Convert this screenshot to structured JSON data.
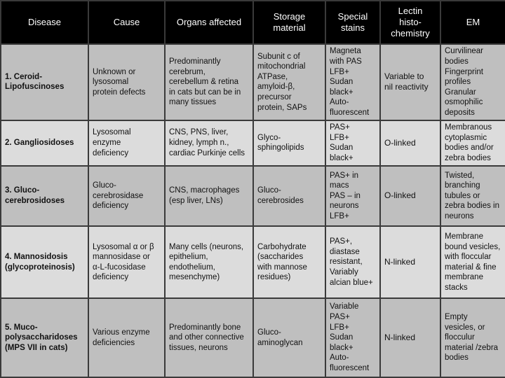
{
  "headers": [
    "Disease",
    "Cause",
    "Organs affected",
    "Storage\nmaterial",
    "Special\nstains",
    "Lectin\nhisto-\nchemistry",
    "EM"
  ],
  "rows": [
    {
      "disease": "1. Ceroid-\nLipofuscinoses",
      "cause": "Unknown or\nlysosomal\nprotein defects",
      "organs": "Predominantly\ncerebrum,\ncerebellum & retina\nin cats but can be in\nmany tissues",
      "storage": "Subunit c of\nmitochondrial\nATPase,\namyloid-β,\nprecursor\nprotein,  SAPs",
      "stains": "Magneta\nwith PAS\nLFB+\nSudan\nblack+\nAuto-\nfluorescent",
      "lectin": "Variable to\nnil reactivity",
      "em": "Curvilinear\nbodies\nFingerprint\nprofiles\nGranular\nosmophilic\ndeposits"
    },
    {
      "disease": "2. Gangliosidoses",
      "cause": "Lysosomal\nenzyme\ndeficiency",
      "organs": "CNS, PNS, liver,\nkidney, lymph n.,\ncardiac Purkinje cells",
      "storage": "Glyco-\nsphingolipids",
      "stains": "PAS+\nLFB+\nSudan\nblack+",
      "lectin": "O-linked",
      "em": "Membranous\ncytoplasmic\nbodies and/or\nzebra bodies"
    },
    {
      "disease": "3. Gluco-\ncerebrosidoses",
      "cause": "Gluco-\ncerebrosidase\ndeficiency",
      "organs": "CNS, macrophages\n(esp liver, LNs)",
      "storage": "Gluco-\ncerebrosides",
      "stains": "PAS+ in\nmacs\nPAS – in\nneurons\nLFB+",
      "lectin": "O-linked",
      "em": "Twisted,\nbranching\ntubules or\nzebra bodies in\nneurons"
    },
    {
      "disease": "4. Mannosidosis\n(glycoproteinosis)",
      "cause": "Lysosomal α or β\nmannosidase  or\nα-L-fucosidase\ndeficiency",
      "organs": "Many cells (neurons,\nepithelium,\nendothelium,\nmesenchyme)",
      "storage": "Carbohydrate\n(saccharides\nwith mannose\nresidues)",
      "stains": "PAS+,\ndiastase\nresistant,\nVariably\nalcian blue+",
      "lectin": "N-linked",
      "em": "Membrane\nbound vesicles,\nwith floccular\nmaterial & fine\nmembrane\nstacks"
    },
    {
      "disease": "5. Muco-\npolysaccharidoses\n(MPS VII in cats)",
      "cause": "Various enzyme\ndeficiencies",
      "organs": "Predominantly  bone\nand other connective\ntissues, neurons",
      "storage": "Gluco-\naminoglycan",
      "stains": " Variable\nPAS+\nLFB+\nSudan\nblack+\nAuto-\nfluorescent",
      "lectin": "N-linked",
      "em": "Empty\nvesicles, or\nflocculur\nmaterial /zebra\nbodies"
    }
  ]
}
